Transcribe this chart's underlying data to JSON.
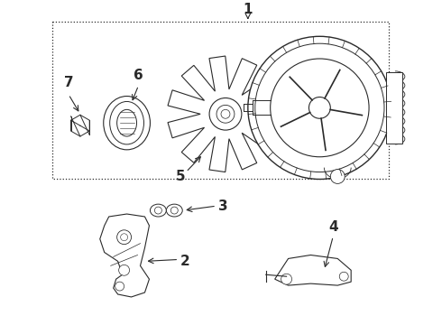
{
  "background_color": "#ffffff",
  "line_color": "#2a2a2a",
  "fig_width": 4.9,
  "fig_height": 3.6,
  "dpi": 100,
  "font_size": 11
}
